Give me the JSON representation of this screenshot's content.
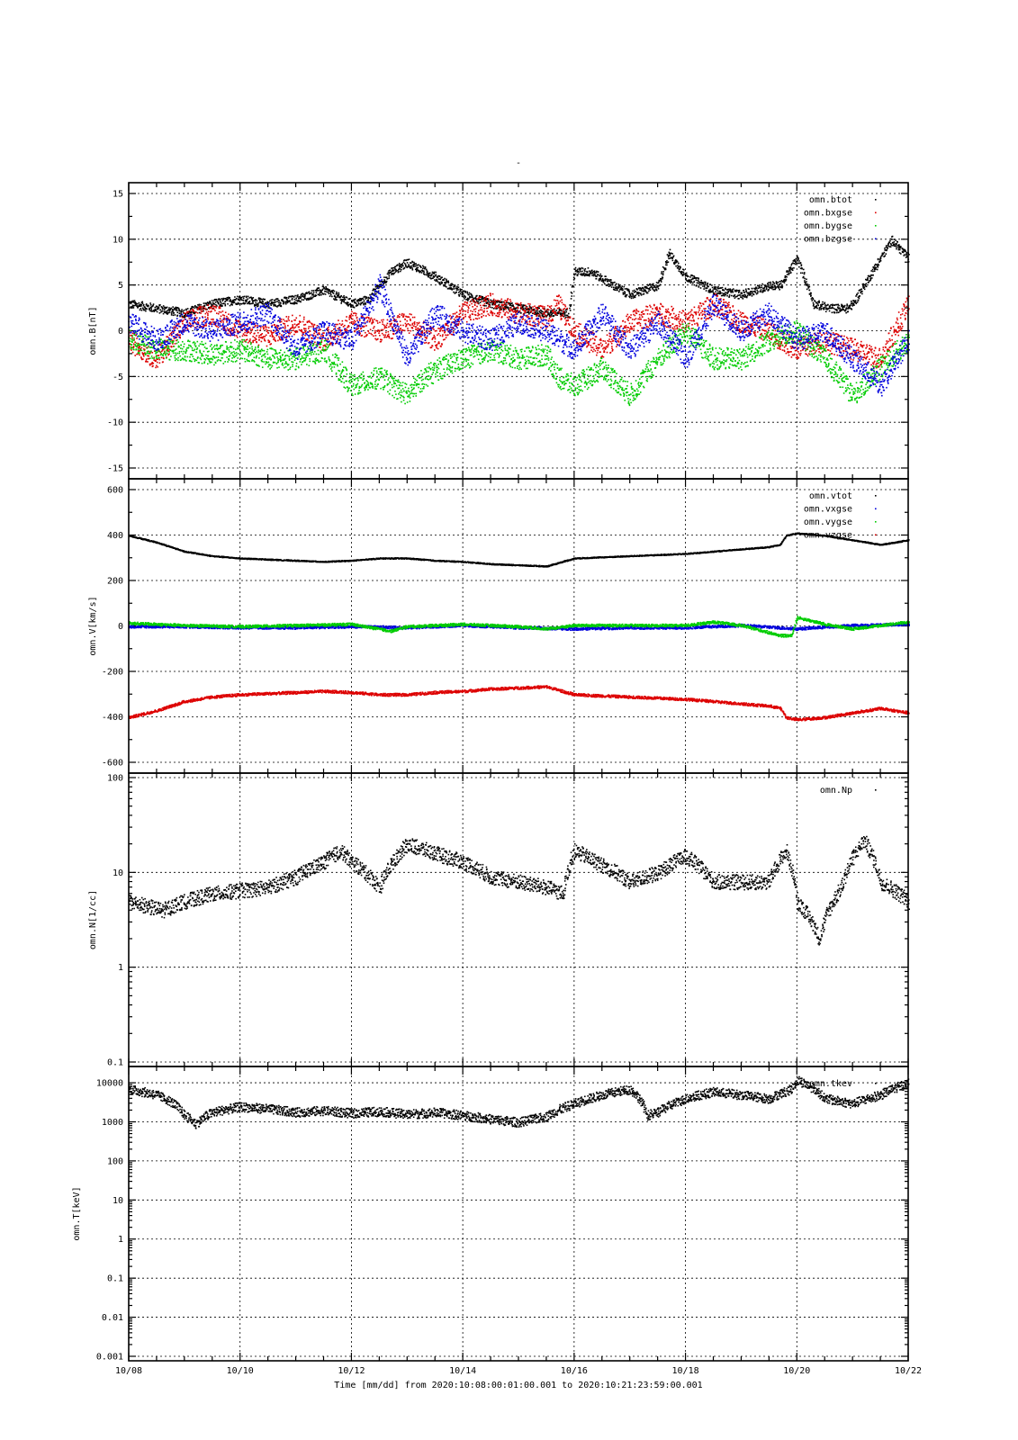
{
  "page": {
    "title": "-"
  },
  "xaxis": {
    "tick_labels": [
      "10/08",
      "10/10",
      "10/12",
      "10/14",
      "10/16",
      "10/18",
      "10/20",
      "10/22"
    ],
    "xlabel": "Time [mm/dd]  from 2020:10:08:00:01:00.001  to  2020:10:21:23:59:00.001",
    "range_days": [
      0,
      14
    ]
  },
  "colors": {
    "black": "#000000",
    "red": "#dd0000",
    "green": "#00cc00",
    "blue": "#0000dd"
  },
  "chart_data": [
    {
      "type": "scatter",
      "ylabel": "omn.B[nT]",
      "ylim": [
        -15,
        15
      ],
      "yticks": [
        "-15",
        "-10",
        "-5",
        "0",
        "5",
        "10",
        "15"
      ],
      "ytick_values": [
        -15,
        -10,
        -5,
        0,
        5,
        10,
        15
      ],
      "log": false,
      "legend_position": "top-right",
      "series": [
        {
          "name": "omn.btot",
          "color": "#000000",
          "x": [
            0,
            0.5,
            1,
            1.5,
            2,
            2.5,
            3,
            3.5,
            4,
            4.3,
            4.7,
            5,
            5.5,
            6,
            6.5,
            7,
            7.5,
            7.9,
            8,
            8.3,
            8.7,
            9,
            9.5,
            9.7,
            10,
            10.5,
            11,
            11.5,
            11.7,
            12,
            12.3,
            12.6,
            12.9,
            13,
            13.3,
            13.7,
            14
          ],
          "y": [
            3,
            2.5,
            2,
            3,
            3.5,
            3,
            3.5,
            4.5,
            3,
            3.5,
            6.5,
            7.5,
            6,
            4,
            3,
            2.5,
            2,
            2,
            6.5,
            6.5,
            5,
            4,
            5,
            8.5,
            6,
            4.5,
            4,
            5,
            5,
            8,
            3,
            2.5,
            2.5,
            3,
            6,
            10,
            8
          ]
        },
        {
          "name": "omn.bxgse",
          "color": "#dd0000",
          "x": [
            0,
            0.5,
            1,
            1.5,
            2,
            2.5,
            3,
            3.5,
            4,
            4.5,
            5,
            5.5,
            6,
            6.5,
            7,
            7.5,
            7.7,
            8,
            8.5,
            9,
            9.5,
            10,
            10.5,
            11,
            11.5,
            11.7,
            12,
            12.5,
            13,
            13.5,
            14
          ],
          "y": [
            -1,
            -3,
            1,
            2,
            0,
            -0.5,
            1,
            -1,
            1,
            0,
            1,
            -1,
            2,
            3,
            2,
            1.5,
            3,
            0,
            -2,
            1,
            2,
            1,
            3,
            1,
            0,
            -1,
            -2,
            -1,
            -2,
            -3,
            3
          ]
        },
        {
          "name": "omn.bygse",
          "color": "#00cc00",
          "x": [
            0,
            0.5,
            1,
            1.5,
            2,
            2.5,
            3,
            3.5,
            4,
            4.5,
            5,
            5.3,
            5.6,
            6,
            6.5,
            7,
            7.5,
            7.7,
            8,
            8.5,
            9,
            9.5,
            10,
            10.5,
            11,
            11.5,
            12,
            12.5,
            13,
            13.5,
            14
          ],
          "y": [
            -1,
            -2,
            -2,
            -2.5,
            -2,
            -3,
            -3,
            -2,
            -6,
            -5,
            -7,
            -5,
            -4,
            -3,
            -2,
            -3,
            -2.5,
            -5,
            -6,
            -4,
            -7,
            -3,
            0,
            -3,
            -3,
            -1,
            0,
            -3,
            -7,
            -4,
            -1
          ]
        },
        {
          "name": "omn.bzgse",
          "color": "#0000dd",
          "x": [
            0,
            0.5,
            1,
            1.5,
            2,
            2.5,
            3,
            3.5,
            4,
            4.5,
            5,
            5.5,
            6,
            6.5,
            7,
            7.5,
            8,
            8.5,
            9,
            9.5,
            10,
            10.5,
            11,
            11.5,
            12,
            12.5,
            13,
            13.5,
            14
          ],
          "y": [
            1,
            -1,
            1,
            0,
            1,
            2,
            -2,
            0,
            -1,
            5,
            -3,
            2,
            0,
            -1,
            1,
            0,
            -2,
            2,
            -2,
            1,
            -3,
            3,
            0,
            2,
            -1,
            0,
            -3,
            -6,
            -1
          ]
        }
      ]
    },
    {
      "type": "scatter",
      "ylabel": "omn.V[km/s]",
      "ylim": [
        -600,
        600
      ],
      "yticks": [
        "-600",
        "-400",
        "-200",
        "0",
        "200",
        "400",
        "600"
      ],
      "ytick_values": [
        -600,
        -400,
        -200,
        0,
        200,
        400,
        600
      ],
      "log": false,
      "legend_position": "top-right",
      "series": [
        {
          "name": "omn.vtot",
          "color": "#000000",
          "x": [
            0,
            0.5,
            1,
            1.5,
            2,
            2.5,
            3,
            3.5,
            4,
            4.5,
            5,
            5.5,
            6,
            6.5,
            7,
            7.5,
            8,
            8.5,
            9,
            9.5,
            10,
            10.5,
            11,
            11.5,
            11.7,
            11.8,
            12,
            12.5,
            13,
            13.5,
            14
          ],
          "y": [
            400,
            370,
            330,
            310,
            300,
            295,
            290,
            285,
            290,
            300,
            300,
            290,
            285,
            275,
            270,
            265,
            300,
            305,
            310,
            315,
            320,
            330,
            340,
            350,
            360,
            400,
            410,
            400,
            380,
            360,
            380
          ]
        },
        {
          "name": "omn.vxgse",
          "color": "#0000dd",
          "x": [
            0,
            1,
            2,
            3,
            4,
            5,
            6,
            7,
            8,
            9,
            10,
            11,
            12,
            13,
            14
          ],
          "y": [
            0,
            0,
            -5,
            -5,
            0,
            -5,
            5,
            -5,
            -10,
            -5,
            -5,
            5,
            -10,
            5,
            10
          ]
        },
        {
          "name": "omn.vygse",
          "color": "#00cc00",
          "x": [
            0,
            0.5,
            1,
            2,
            3,
            4,
            4.7,
            5,
            6,
            7,
            7.5,
            8,
            9,
            10,
            10.5,
            11,
            11.7,
            11.9,
            12,
            12.5,
            13,
            14
          ],
          "y": [
            15,
            10,
            5,
            0,
            5,
            10,
            -20,
            0,
            10,
            0,
            -10,
            5,
            5,
            5,
            20,
            5,
            -40,
            -40,
            40,
            10,
            -10,
            20
          ]
        },
        {
          "name": "omn.vzgse",
          "color": "#dd0000",
          "x": [
            0,
            0.5,
            1,
            1.5,
            2,
            2.5,
            3,
            3.5,
            4,
            4.5,
            5,
            5.5,
            6,
            6.5,
            7,
            7.5,
            8,
            8.5,
            9,
            9.5,
            10,
            10.5,
            11,
            11.5,
            11.7,
            11.8,
            12,
            12.5,
            13,
            13.5,
            14
          ],
          "y": [
            -400,
            -370,
            -330,
            -310,
            -300,
            -295,
            -290,
            -285,
            -290,
            -300,
            -300,
            -290,
            -285,
            -275,
            -270,
            -265,
            -300,
            -305,
            -310,
            -315,
            -320,
            -330,
            -340,
            -350,
            -360,
            -400,
            -410,
            -400,
            -380,
            -360,
            -380
          ]
        }
      ]
    },
    {
      "type": "scatter",
      "ylabel": "omn.N[1/cc]",
      "ylim": [
        0.1,
        100
      ],
      "yticks": [
        "0.1",
        "1",
        "10",
        "100"
      ],
      "ytick_values": [
        0.1,
        1,
        10,
        100
      ],
      "log": true,
      "legend_position": "top-right",
      "series": [
        {
          "name": "omn.Np",
          "color": "#000000",
          "x": [
            0,
            0.3,
            0.6,
            1,
            1.5,
            2,
            2.5,
            3,
            3.5,
            3.8,
            4,
            4.5,
            5,
            5.5,
            6,
            6.5,
            7,
            7.5,
            7.8,
            8,
            8.5,
            9,
            9.5,
            10,
            10.5,
            11,
            11.5,
            11.8,
            12,
            12.4,
            12.8,
            13.2,
            13.5,
            14
          ],
          "y": [
            5,
            4.5,
            4,
            5,
            6,
            6.5,
            7,
            9,
            13,
            17,
            13,
            7,
            20,
            16,
            13,
            9,
            8,
            7,
            6,
            17,
            12,
            8,
            10,
            15,
            8,
            8,
            8,
            17,
            5,
            2,
            7,
            22,
            8,
            5
          ]
        }
      ]
    },
    {
      "type": "scatter",
      "ylabel": "omn.T[keV]",
      "ylim": [
        0.001,
        20000
      ],
      "yticks": [
        "0.001",
        "0.01",
        "0.1",
        "1",
        "10",
        "100",
        "1000",
        "10000"
      ],
      "ytick_values": [
        0.001,
        0.01,
        0.1,
        1,
        10,
        100,
        1000,
        10000
      ],
      "log": true,
      "legend_position": "top-right",
      "series": [
        {
          "name": "omn.tkev",
          "color": "#000000",
          "x": [
            0,
            0.5,
            0.8,
            1,
            1.2,
            1.5,
            2,
            2.5,
            3,
            3.5,
            4,
            4.5,
            5,
            5.5,
            6,
            6.5,
            7,
            7.5,
            8,
            8.5,
            9,
            9.3,
            9.5,
            10,
            10.5,
            11,
            11.5,
            11.9,
            12,
            12.5,
            13,
            13.5,
            14
          ],
          "y": [
            7000,
            5000,
            3000,
            1500,
            900,
            1800,
            2500,
            2200,
            1800,
            2000,
            1700,
            1900,
            1600,
            1800,
            1500,
            1200,
            1000,
            1400,
            3000,
            5000,
            7000,
            1500,
            1800,
            4000,
            6000,
            5000,
            4000,
            7000,
            12000,
            4000,
            3000,
            5000,
            10000
          ]
        }
      ]
    }
  ]
}
